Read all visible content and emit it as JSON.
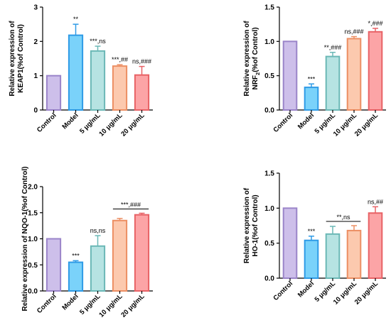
{
  "chart_data": [
    {
      "type": "bar",
      "ylabel_lines": [
        "Relative expression of",
        "KEAP1(%of Control)"
      ],
      "ylabel_sub": null,
      "ylim": [
        0,
        3
      ],
      "yticks": [
        "0",
        "1",
        "2",
        "3"
      ],
      "categories": [
        "Control",
        "Model",
        "5 μg/mL",
        "10 μg/mL",
        "20 μg/mL"
      ],
      "values": [
        1.0,
        2.18,
        1.72,
        1.28,
        1.02
      ],
      "errors": [
        0.0,
        0.32,
        0.14,
        0.04,
        0.25
      ],
      "annotations": [
        "",
        "**",
        "***,ns",
        "***,##",
        "ns,###"
      ],
      "bracket": null
    },
    {
      "type": "bar",
      "ylabel_lines": [
        "Relative expression of",
        "NRF2(%of Control)"
      ],
      "ylabel_sub": "2",
      "ylim": [
        0,
        1.5
      ],
      "yticks": [
        "0.0",
        "0.5",
        "1.0",
        "1.5"
      ],
      "categories": [
        "Control",
        "Model",
        "5 μg/mL",
        "10 μg/mL",
        "20 μg/mL"
      ],
      "values": [
        1.0,
        0.33,
        0.78,
        1.04,
        1.14
      ],
      "errors": [
        0.0,
        0.05,
        0.06,
        0.03,
        0.05
      ],
      "annotations": [
        "",
        "***",
        "**,###",
        "ns,###",
        "*,###"
      ],
      "bracket": null
    },
    {
      "type": "bar",
      "ylabel_lines": [
        "Relative expression of NQO-1(%of Control)"
      ],
      "ylabel_sub": null,
      "ylim": [
        0,
        2.0
      ],
      "yticks": [
        "0.0",
        "0.5",
        "1.0",
        "1.5",
        "2.0"
      ],
      "categories": [
        "Control",
        "Model",
        "5 μg/mL",
        "10 μg/mL",
        "20 μg/mL"
      ],
      "values": [
        1.0,
        0.55,
        0.86,
        1.35,
        1.46
      ],
      "errors": [
        0.0,
        0.03,
        0.2,
        0.04,
        0.03
      ],
      "annotations": [
        "",
        "***",
        "ns,ns",
        "",
        ""
      ],
      "bracket": {
        "from": 3,
        "to": 4,
        "label": "***,###"
      }
    },
    {
      "type": "bar",
      "ylabel_lines": [
        "Relative expression of",
        "HO-1(%of Control)"
      ],
      "ylabel_sub": null,
      "ylim": [
        0,
        1.5
      ],
      "yticks": [
        "0.0",
        "0.5",
        "1.0",
        "1.5"
      ],
      "categories": [
        "Control",
        "Model",
        "5 μg/mL",
        "10 μg/mL",
        "20 μg/mL"
      ],
      "values": [
        1.0,
        0.54,
        0.63,
        0.68,
        0.93
      ],
      "errors": [
        0.0,
        0.06,
        0.11,
        0.07,
        0.09
      ],
      "annotations": [
        "",
        "***",
        "",
        "",
        "ns,##"
      ],
      "bracket": {
        "from": 2,
        "to": 3,
        "label": "**,ns"
      }
    }
  ],
  "colors": {
    "fill": [
      "#cdbfea",
      "#7ad2fa",
      "#b6e3e2",
      "#fcc9ae",
      "#fca4a6"
    ],
    "stroke": [
      "#9a84c9",
      "#2f9be6",
      "#6bb8b6",
      "#ec8f63",
      "#e86266"
    ]
  }
}
